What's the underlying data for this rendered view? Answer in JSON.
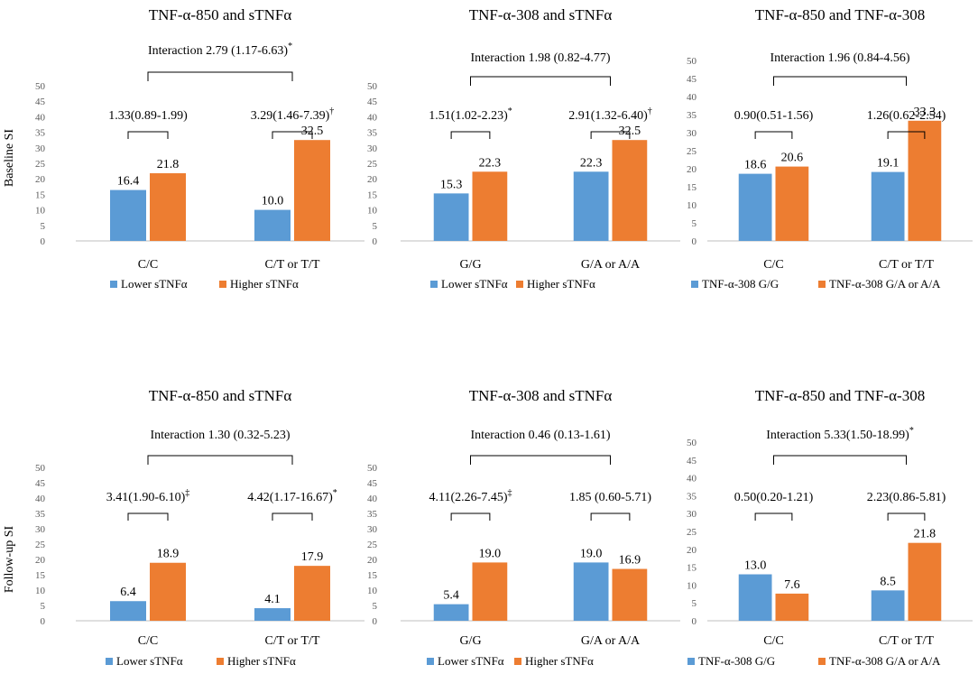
{
  "colors": {
    "series1": "#5B9BD5",
    "series2": "#ED7D31",
    "axis": "#BFBFBF",
    "bracket": "#000000"
  },
  "chart_data": [
    {
      "type": "bar",
      "title": "TNF-α-850 and sTNFα",
      "ylabel": "Baseline SI",
      "categories": [
        "C/C",
        "C/T or T/T"
      ],
      "series": [
        {
          "name": "Lower sTNFα",
          "values": [
            16.4,
            10.0
          ]
        },
        {
          "name": "Higher sTNFα",
          "values": [
            21.8,
            32.5
          ]
        }
      ],
      "ylim": [
        0,
        50
      ],
      "yticks": [
        "0",
        "5",
        "10",
        "15",
        "20",
        "25",
        "30",
        "35",
        "40",
        "45",
        "50"
      ],
      "value_labels": [
        [
          "16.4",
          "10.0"
        ],
        [
          "21.8",
          "32.5"
        ]
      ],
      "group_annotations": [
        {
          "text": "1.33(0.89-1.99)",
          "sup": ""
        },
        {
          "text": "3.29(1.46-7.39)",
          "sup": "†"
        }
      ],
      "interaction": {
        "text": "Interaction 2.79 (1.17-6.63)",
        "sup": "*"
      }
    },
    {
      "type": "bar",
      "title": "TNF-α-308 and sTNFα",
      "ylabel": "",
      "categories": [
        "G/G",
        "G/A or A/A"
      ],
      "series": [
        {
          "name": "Lower sTNFα",
          "values": [
            15.3,
            22.3
          ]
        },
        {
          "name": "Higher sTNFα",
          "values": [
            22.3,
            32.5
          ]
        }
      ],
      "ylim": [
        0,
        50
      ],
      "yticks": [
        "0",
        "5",
        "10",
        "15",
        "20",
        "25",
        "30",
        "35",
        "40",
        "45",
        "50"
      ],
      "value_labels": [
        [
          "15.3",
          "22.3"
        ],
        [
          "22.3",
          "32.5"
        ]
      ],
      "group_annotations": [
        {
          "text": "1.51(1.02-2.23)",
          "sup": "*"
        },
        {
          "text": "2.91(1.32-6.40)",
          "sup": "†"
        }
      ],
      "interaction": {
        "text": "Interaction 1.98 (0.82-4.77)",
        "sup": ""
      }
    },
    {
      "type": "bar",
      "title": "TNF-α-850 and TNF-α-308",
      "ylabel": "",
      "categories": [
        "C/C",
        "C/T or T/T"
      ],
      "series": [
        {
          "name": "TNF-α-308 G/G",
          "values": [
            18.6,
            19.1
          ]
        },
        {
          "name": "TNF-α-308 G/A or A/A",
          "values": [
            20.6,
            33.3
          ]
        }
      ],
      "ylim": [
        0,
        50
      ],
      "yticks": [
        "0",
        "5",
        "10",
        "15",
        "20",
        "25",
        "30",
        "35",
        "40",
        "45",
        "50"
      ],
      "value_labels": [
        [
          "18.6",
          "19.1"
        ],
        [
          "20.6",
          "33.3"
        ]
      ],
      "group_annotations": [
        {
          "text": "0.90(0.51-1.56)",
          "sup": ""
        },
        {
          "text": "1.26(0.62-2.54)",
          "sup": ""
        }
      ],
      "interaction": {
        "text": "Interaction 1.96 (0.84-4.56)",
        "sup": ""
      }
    },
    {
      "type": "bar",
      "title": "TNF-α-850 and sTNFα",
      "ylabel": "Follow-up SI",
      "categories": [
        "C/C",
        "C/T or T/T"
      ],
      "series": [
        {
          "name": "Lower sTNFα",
          "values": [
            6.4,
            4.1
          ]
        },
        {
          "name": "Higher sTNFα",
          "values": [
            18.9,
            17.9
          ]
        }
      ],
      "ylim": [
        0,
        50
      ],
      "yticks": [
        "0",
        "5",
        "10",
        "15",
        "20",
        "25",
        "30",
        "35",
        "40",
        "45",
        "50"
      ],
      "value_labels": [
        [
          "6.4",
          "4.1"
        ],
        [
          "18.9",
          "17.9"
        ]
      ],
      "group_annotations": [
        {
          "text": "3.41(1.90-6.10)",
          "sup": "‡"
        },
        {
          "text": "4.42(1.17-16.67)",
          "sup": "*"
        }
      ],
      "interaction": {
        "text": "Interaction 1.30 (0.32-5.23)",
        "sup": ""
      }
    },
    {
      "type": "bar",
      "title": "TNF-α-308 and sTNFα",
      "ylabel": "",
      "categories": [
        "G/G",
        "G/A or A/A"
      ],
      "series": [
        {
          "name": "Lower sTNFα",
          "values": [
            5.4,
            19.0
          ]
        },
        {
          "name": "Higher sTNFα",
          "values": [
            19.0,
            16.9
          ]
        }
      ],
      "ylim": [
        0,
        50
      ],
      "yticks": [
        "0",
        "5",
        "10",
        "15",
        "20",
        "25",
        "30",
        "35",
        "40",
        "45",
        "50"
      ],
      "value_labels": [
        [
          "5.4",
          "19.0"
        ],
        [
          "19.0",
          "16.9"
        ]
      ],
      "group_annotations": [
        {
          "text": "4.11(2.26-7.45)",
          "sup": "‡"
        },
        {
          "text": "1.85 (0.60-5.71)",
          "sup": ""
        }
      ],
      "interaction": {
        "text": "Interaction 0.46 (0.13-1.61)",
        "sup": ""
      }
    },
    {
      "type": "bar",
      "title": "TNF-α-850 and TNF-α-308",
      "ylabel": "",
      "categories": [
        "C/C",
        "C/T or T/T"
      ],
      "series": [
        {
          "name": "TNF-α-308 G/G",
          "values": [
            13.0,
            8.5
          ]
        },
        {
          "name": "TNF-α-308 G/A or A/A",
          "values": [
            7.6,
            21.8
          ]
        }
      ],
      "ylim": [
        0,
        50
      ],
      "yticks": [
        "0",
        "5",
        "10",
        "15",
        "20",
        "25",
        "30",
        "35",
        "40",
        "45",
        "50"
      ],
      "value_labels": [
        [
          "13.0",
          "8.5"
        ],
        [
          "7.6",
          "21.8"
        ]
      ],
      "group_annotations": [
        {
          "text": "0.50(0.20-1.21)",
          "sup": ""
        },
        {
          "text": "2.23(0.86-5.81)",
          "sup": ""
        }
      ],
      "interaction": {
        "text": "Interaction 5.33(1.50-18.99)",
        "sup": "*"
      }
    }
  ]
}
